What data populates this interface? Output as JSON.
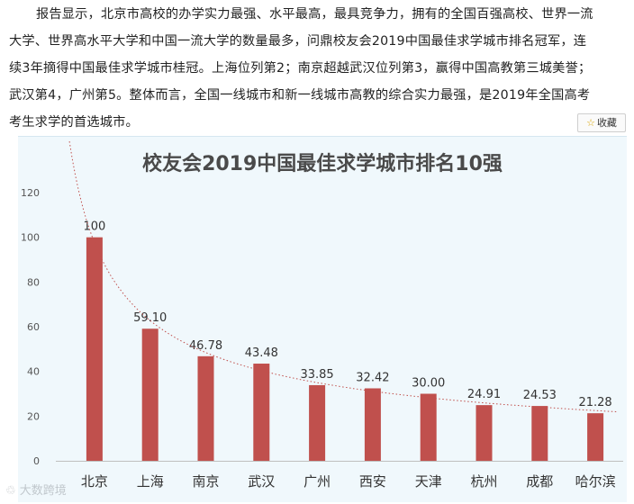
{
  "article": {
    "lines": [
      "报告显示，北京市高校的办学实力最强、水平最高，最具竞争力，拥有的全国百强高校、世界一流",
      "大学、世界高水平大学和中国一流大学的数量最多，问鼎校友会2019中国最佳求学城市排名冠军，连",
      "续3年摘得中国最佳求学城市桂冠。上海位列第2；南京超越武汉位列第3，赢得中国高教第三城美誉；",
      "武汉第4，广州第5。整体而言，全国一线城市和新一线城市高教的综合实力最强，是2019年全国高考",
      "考生求学的首选城市。"
    ]
  },
  "favorite": {
    "icon": "star-icon",
    "label": "收藏"
  },
  "watermark": {
    "text": "大数跨境"
  },
  "colors": {
    "bar": "#c0504d",
    "trend": "#c0504d",
    "panel": "#f0f8fc",
    "title": "#4a4a4a"
  },
  "chart_data": {
    "type": "bar",
    "title": "校友会2019中国最佳求学城市排名10强",
    "categories": [
      "北京",
      "上海",
      "南京",
      "武汉",
      "广州",
      "西安",
      "天津",
      "杭州",
      "成都",
      "哈尔滨"
    ],
    "values": [
      100,
      59.1,
      46.78,
      43.48,
      33.85,
      32.42,
      30.0,
      24.91,
      24.53,
      21.28
    ],
    "value_labels": [
      "100",
      "59.10",
      "46.78",
      "43.48",
      "33.85",
      "32.42",
      "30.00",
      "24.91",
      "24.53",
      "21.28"
    ],
    "ylim": [
      0,
      120
    ],
    "yticks": [
      "0",
      "20",
      "40",
      "60",
      "80",
      "100",
      "120"
    ],
    "xlabel": "",
    "ylabel": "",
    "grid": false,
    "legend": "none",
    "trendline": {
      "type": "power",
      "style": "dotted"
    }
  }
}
